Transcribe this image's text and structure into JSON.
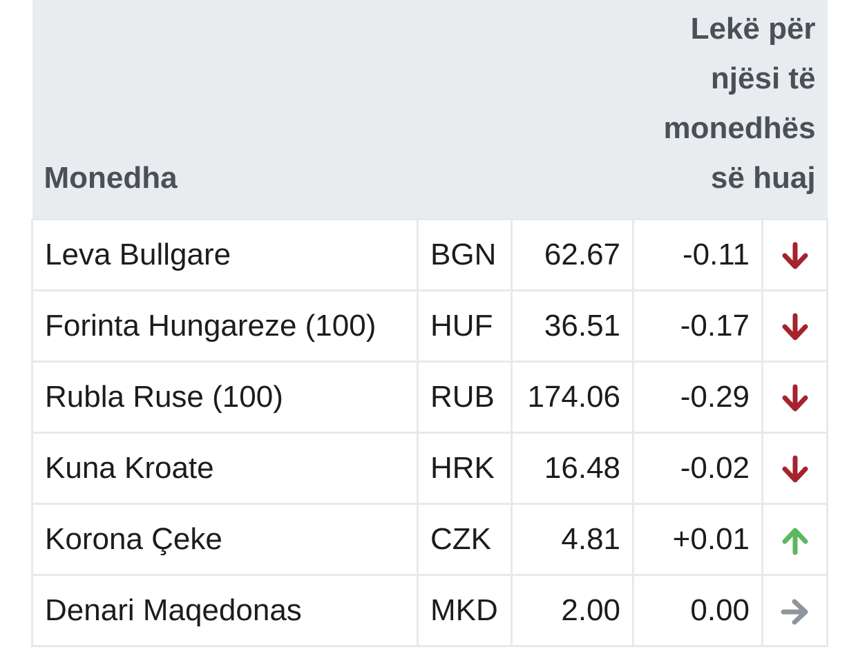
{
  "table": {
    "header": {
      "currency_label": "Monedha",
      "rate_label_lines": [
        "Lekë për",
        "njësi të",
        "monedhës",
        "së huaj"
      ]
    },
    "rows": [
      {
        "name": "Leva Bullgare",
        "code": "BGN",
        "rate": "62.67",
        "change": "-0.11",
        "direction": "down",
        "icon": "arrow-down-icon"
      },
      {
        "name": "Forinta Hungareze (100)",
        "code": "HUF",
        "rate": "36.51",
        "change": "-0.17",
        "direction": "down",
        "icon": "arrow-down-icon"
      },
      {
        "name": "Rubla Ruse (100)",
        "code": "RUB",
        "rate": "174.06",
        "change": "-0.29",
        "direction": "down",
        "icon": "arrow-down-icon"
      },
      {
        "name": "Kuna Kroate",
        "code": "HRK",
        "rate": "16.48",
        "change": "-0.02",
        "direction": "down",
        "icon": "arrow-down-icon"
      },
      {
        "name": "Korona Çeke",
        "code": "CZK",
        "rate": "4.81",
        "change": "+0.01",
        "direction": "up",
        "icon": "arrow-up-icon"
      },
      {
        "name": "Denari Maqedonas",
        "code": "MKD",
        "rate": "2.00",
        "change": "0.00",
        "direction": "flat",
        "icon": "arrow-right-icon"
      }
    ]
  },
  "colors": {
    "down": "#a4232d",
    "up": "#5cb85c",
    "flat": "#8e959c",
    "header_bg": "#e9ecef",
    "header_text": "#495057",
    "border": "#e7e9ec"
  }
}
